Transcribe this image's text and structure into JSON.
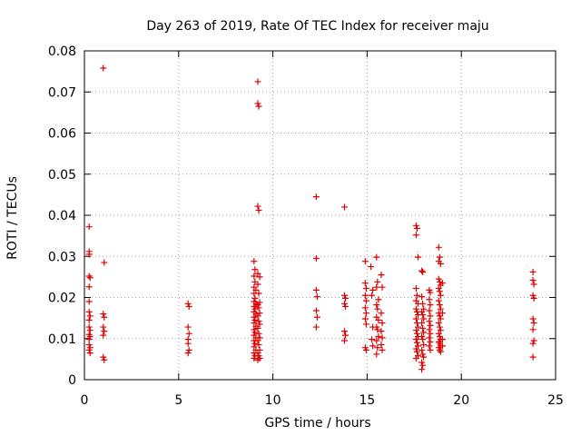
{
  "chart_data": {
    "type": "scatter",
    "title": "Day 263 of 2019, Rate Of TEC Index for receiver maju",
    "xlabel": "GPS time / hours",
    "ylabel": "ROTI / TECUs",
    "xlim": [
      0,
      25
    ],
    "ylim": [
      0,
      0.08
    ],
    "x_ticks": [
      0,
      5,
      10,
      15,
      20,
      25
    ],
    "y_ticks": [
      0,
      0.01,
      0.02,
      0.03,
      0.04,
      0.05,
      0.06,
      0.07,
      0.08
    ],
    "x_tick_labels": [
      "0",
      "5",
      "10",
      "15",
      "20",
      "25"
    ],
    "y_tick_labels": [
      "0",
      "0.01",
      "0.02",
      "0.03",
      "0.04",
      "0.05",
      "0.06",
      "0.07",
      "0.08"
    ],
    "grid": true,
    "marker": "+",
    "marker_color": "#dd0000",
    "series": [
      {
        "name": "ROTI",
        "points": [
          [
            0.25,
            0.0372
          ],
          [
            0.25,
            0.0312
          ],
          [
            0.25,
            0.0305
          ],
          [
            0.25,
            0.0252
          ],
          [
            0.3,
            0.0248
          ],
          [
            0.25,
            0.0226
          ],
          [
            0.25,
            0.019
          ],
          [
            0.25,
            0.0165
          ],
          [
            0.3,
            0.0155
          ],
          [
            0.25,
            0.0145
          ],
          [
            0.25,
            0.0128
          ],
          [
            0.3,
            0.012
          ],
          [
            0.25,
            0.011
          ],
          [
            0.3,
            0.0105
          ],
          [
            0.25,
            0.0098
          ],
          [
            0.25,
            0.0085
          ],
          [
            0.3,
            0.0078
          ],
          [
            0.25,
            0.0072
          ],
          [
            0.3,
            0.0065
          ],
          [
            1.0,
            0.0758
          ],
          [
            1.05,
            0.0285
          ],
          [
            1.0,
            0.016
          ],
          [
            1.05,
            0.0152
          ],
          [
            1.0,
            0.0128
          ],
          [
            1.05,
            0.0118
          ],
          [
            1.0,
            0.0108
          ],
          [
            1.0,
            0.0055
          ],
          [
            1.05,
            0.0048
          ],
          [
            5.5,
            0.0185
          ],
          [
            5.55,
            0.0178
          ],
          [
            5.5,
            0.0128
          ],
          [
            5.55,
            0.0112
          ],
          [
            5.5,
            0.0098
          ],
          [
            5.5,
            0.0088
          ],
          [
            5.55,
            0.0072
          ],
          [
            5.5,
            0.0065
          ],
          [
            9.0,
            0.0288
          ],
          [
            9.05,
            0.0268
          ],
          [
            9.0,
            0.0252
          ],
          [
            9.05,
            0.0238
          ],
          [
            9.0,
            0.0225
          ],
          [
            9.1,
            0.0218
          ],
          [
            9.0,
            0.021
          ],
          [
            9.05,
            0.0198
          ],
          [
            9.0,
            0.019
          ],
          [
            9.1,
            0.0185
          ],
          [
            9.0,
            0.0178
          ],
          [
            9.05,
            0.0172
          ],
          [
            9.0,
            0.0165
          ],
          [
            9.1,
            0.016
          ],
          [
            9.0,
            0.0152
          ],
          [
            9.05,
            0.0145
          ],
          [
            9.0,
            0.0138
          ],
          [
            9.1,
            0.013
          ],
          [
            9.0,
            0.0122
          ],
          [
            9.05,
            0.0115
          ],
          [
            9.0,
            0.0108
          ],
          [
            9.1,
            0.0102
          ],
          [
            9.0,
            0.0095
          ],
          [
            9.05,
            0.0088
          ],
          [
            9.0,
            0.008
          ],
          [
            9.1,
            0.0072
          ],
          [
            9.0,
            0.0065
          ],
          [
            9.05,
            0.0058
          ],
          [
            9.0,
            0.0052
          ],
          [
            9.2,
            0.0725
          ],
          [
            9.2,
            0.0672
          ],
          [
            9.25,
            0.0665
          ],
          [
            9.2,
            0.0422
          ],
          [
            9.25,
            0.0412
          ],
          [
            9.2,
            0.0258
          ],
          [
            9.3,
            0.025
          ],
          [
            9.2,
            0.0232
          ],
          [
            9.25,
            0.021
          ],
          [
            9.3,
            0.0188
          ],
          [
            9.2,
            0.0182
          ],
          [
            9.25,
            0.0175
          ],
          [
            9.3,
            0.0162
          ],
          [
            9.2,
            0.0155
          ],
          [
            9.25,
            0.0142
          ],
          [
            9.3,
            0.0135
          ],
          [
            9.2,
            0.0125
          ],
          [
            9.25,
            0.0112
          ],
          [
            9.3,
            0.0102
          ],
          [
            9.2,
            0.0095
          ],
          [
            9.25,
            0.0085
          ],
          [
            9.3,
            0.0072
          ],
          [
            9.2,
            0.0065
          ],
          [
            9.25,
            0.0058
          ],
          [
            9.3,
            0.0052
          ],
          [
            9.2,
            0.0048
          ],
          [
            12.3,
            0.0445
          ],
          [
            12.3,
            0.0295
          ],
          [
            12.3,
            0.0218
          ],
          [
            12.35,
            0.0202
          ],
          [
            12.3,
            0.0168
          ],
          [
            12.35,
            0.0152
          ],
          [
            12.3,
            0.0128
          ],
          [
            13.8,
            0.042
          ],
          [
            13.8,
            0.0205
          ],
          [
            13.85,
            0.0198
          ],
          [
            13.8,
            0.0185
          ],
          [
            13.85,
            0.0178
          ],
          [
            13.8,
            0.0118
          ],
          [
            13.85,
            0.0108
          ],
          [
            13.8,
            0.0095
          ],
          [
            14.9,
            0.0288
          ],
          [
            14.9,
            0.0235
          ],
          [
            14.95,
            0.0222
          ],
          [
            14.9,
            0.0205
          ],
          [
            14.95,
            0.0192
          ],
          [
            14.9,
            0.0175
          ],
          [
            14.95,
            0.0162
          ],
          [
            14.9,
            0.0148
          ],
          [
            14.95,
            0.0135
          ],
          [
            14.9,
            0.0078
          ],
          [
            14.95,
            0.0072
          ],
          [
            15.2,
            0.0275
          ],
          [
            15.3,
            0.0218
          ],
          [
            15.25,
            0.0205
          ],
          [
            15.3,
            0.0128
          ],
          [
            15.25,
            0.0098
          ],
          [
            15.3,
            0.0082
          ],
          [
            15.5,
            0.0298
          ],
          [
            15.55,
            0.0238
          ],
          [
            15.5,
            0.0225
          ],
          [
            15.6,
            0.0195
          ],
          [
            15.5,
            0.0182
          ],
          [
            15.55,
            0.0172
          ],
          [
            15.5,
            0.0152
          ],
          [
            15.6,
            0.0145
          ],
          [
            15.5,
            0.0128
          ],
          [
            15.55,
            0.0122
          ],
          [
            15.6,
            0.0105
          ],
          [
            15.5,
            0.0095
          ],
          [
            15.55,
            0.0078
          ],
          [
            15.5,
            0.0062
          ],
          [
            15.75,
            0.0255
          ],
          [
            15.8,
            0.0225
          ],
          [
            15.75,
            0.0162
          ],
          [
            15.8,
            0.0138
          ],
          [
            15.75,
            0.0118
          ],
          [
            15.8,
            0.0102
          ],
          [
            15.75,
            0.0085
          ],
          [
            15.8,
            0.0072
          ],
          [
            17.6,
            0.0375
          ],
          [
            17.65,
            0.0368
          ],
          [
            17.6,
            0.0352
          ],
          [
            17.7,
            0.0298
          ],
          [
            17.6,
            0.0222
          ],
          [
            17.65,
            0.0205
          ],
          [
            17.6,
            0.0192
          ],
          [
            17.7,
            0.0185
          ],
          [
            17.6,
            0.0172
          ],
          [
            17.65,
            0.0165
          ],
          [
            17.7,
            0.0158
          ],
          [
            17.6,
            0.0148
          ],
          [
            17.65,
            0.0138
          ],
          [
            17.7,
            0.0128
          ],
          [
            17.6,
            0.012
          ],
          [
            17.65,
            0.0112
          ],
          [
            17.7,
            0.0105
          ],
          [
            17.6,
            0.0098
          ],
          [
            17.65,
            0.009
          ],
          [
            17.7,
            0.0082
          ],
          [
            17.6,
            0.0075
          ],
          [
            17.65,
            0.0068
          ],
          [
            17.7,
            0.0058
          ],
          [
            17.6,
            0.0052
          ],
          [
            17.9,
            0.0265
          ],
          [
            17.95,
            0.0262
          ],
          [
            17.9,
            0.0202
          ],
          [
            17.95,
            0.0185
          ],
          [
            18.0,
            0.0172
          ],
          [
            17.9,
            0.0165
          ],
          [
            17.95,
            0.0158
          ],
          [
            18.0,
            0.0148
          ],
          [
            17.9,
            0.0138
          ],
          [
            17.95,
            0.0125
          ],
          [
            18.0,
            0.0115
          ],
          [
            17.9,
            0.0105
          ],
          [
            17.95,
            0.0098
          ],
          [
            18.0,
            0.0085
          ],
          [
            17.9,
            0.0072
          ],
          [
            17.95,
            0.0062
          ],
          [
            18.0,
            0.0055
          ],
          [
            17.9,
            0.0042
          ],
          [
            17.95,
            0.0035
          ],
          [
            17.9,
            0.0025
          ],
          [
            18.3,
            0.0218
          ],
          [
            18.35,
            0.0212
          ],
          [
            18.3,
            0.0195
          ],
          [
            18.35,
            0.0182
          ],
          [
            18.3,
            0.0168
          ],
          [
            18.35,
            0.0155
          ],
          [
            18.3,
            0.0142
          ],
          [
            18.35,
            0.0132
          ],
          [
            18.3,
            0.0122
          ],
          [
            18.35,
            0.0112
          ],
          [
            18.3,
            0.0102
          ],
          [
            18.35,
            0.0092
          ],
          [
            18.3,
            0.0082
          ],
          [
            18.35,
            0.0072
          ],
          [
            18.8,
            0.0322
          ],
          [
            18.85,
            0.0298
          ],
          [
            18.8,
            0.0288
          ],
          [
            18.9,
            0.0282
          ],
          [
            18.8,
            0.0245
          ],
          [
            18.85,
            0.0238
          ],
          [
            18.9,
            0.023
          ],
          [
            18.8,
            0.0222
          ],
          [
            18.85,
            0.0215
          ],
          [
            18.9,
            0.0205
          ],
          [
            18.8,
            0.0192
          ],
          [
            18.85,
            0.0182
          ],
          [
            18.9,
            0.0172
          ],
          [
            18.8,
            0.0162
          ],
          [
            18.85,
            0.0155
          ],
          [
            18.9,
            0.0148
          ],
          [
            18.8,
            0.0138
          ],
          [
            18.85,
            0.0128
          ],
          [
            18.9,
            0.012
          ],
          [
            18.8,
            0.0112
          ],
          [
            18.85,
            0.0105
          ],
          [
            18.9,
            0.0098
          ],
          [
            18.8,
            0.0092
          ],
          [
            18.85,
            0.0088
          ],
          [
            18.9,
            0.0082
          ],
          [
            18.8,
            0.0078
          ],
          [
            18.85,
            0.0072
          ],
          [
            18.9,
            0.0068
          ],
          [
            19.0,
            0.0235
          ],
          [
            19.0,
            0.0162
          ],
          [
            19.0,
            0.0098
          ],
          [
            19.0,
            0.0082
          ],
          [
            23.8,
            0.0262
          ],
          [
            23.8,
            0.0242
          ],
          [
            23.85,
            0.0232
          ],
          [
            23.8,
            0.0205
          ],
          [
            23.85,
            0.0198
          ],
          [
            23.8,
            0.0148
          ],
          [
            23.85,
            0.0138
          ],
          [
            23.8,
            0.0122
          ],
          [
            23.85,
            0.0095
          ],
          [
            23.8,
            0.0088
          ],
          [
            23.8,
            0.0055
          ]
        ]
      }
    ]
  }
}
